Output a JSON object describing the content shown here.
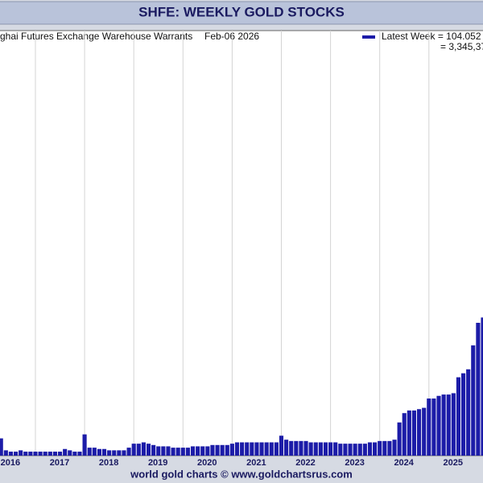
{
  "chart_data": {
    "type": "bar",
    "title": "SHFE: WEEKLY GOLD STOCKS",
    "subtitle": "ghai Futures Exchange Warehouse Warrants",
    "date": "Feb-06  2026",
    "legend": [
      "Latest Week = 104.052",
      "= 3,345,37"
    ],
    "footer": "world gold charts © www.goldchartsrus.com",
    "color": "#1c1ca8",
    "x": [
      2016.3,
      2016.4,
      2016.5,
      2016.6,
      2016.7,
      2016.8,
      2016.9,
      2017.0,
      2017.1,
      2017.2,
      2017.3,
      2017.4,
      2017.5,
      2017.6,
      2017.7,
      2017.8,
      2017.9,
      2018.0,
      2018.1,
      2018.2,
      2018.3,
      2018.4,
      2018.5,
      2018.6,
      2018.7,
      2018.8,
      2018.9,
      2019.0,
      2019.1,
      2019.2,
      2019.3,
      2019.4,
      2019.5,
      2019.6,
      2019.7,
      2019.8,
      2019.9,
      2020.0,
      2020.1,
      2020.2,
      2020.3,
      2020.4,
      2020.5,
      2020.6,
      2020.7,
      2020.8,
      2020.9,
      2021.0,
      2021.1,
      2021.2,
      2021.3,
      2021.4,
      2021.5,
      2021.6,
      2021.7,
      2021.8,
      2021.9,
      2022.0,
      2022.1,
      2022.2,
      2022.3,
      2022.4,
      2022.5,
      2022.6,
      2022.7,
      2022.8,
      2022.9,
      2023.0,
      2023.1,
      2023.2,
      2023.3,
      2023.4,
      2023.5,
      2023.6,
      2023.7,
      2023.8,
      2023.9,
      2024.0,
      2024.1,
      2024.2,
      2024.3,
      2024.4,
      2024.5,
      2024.6,
      2024.7,
      2024.8,
      2024.9,
      2025.0,
      2025.1,
      2025.2,
      2025.3,
      2025.4,
      2025.5,
      2025.6,
      2025.7,
      2025.8,
      2025.9,
      2026.0,
      2026.1
    ],
    "values": [
      13,
      4,
      3,
      3,
      4,
      3,
      3,
      3,
      3,
      3,
      3,
      3,
      3,
      5,
      4,
      3,
      3,
      16,
      6,
      6,
      5,
      5,
      4,
      4,
      4,
      4,
      6,
      9,
      9,
      10,
      9,
      8,
      7,
      7,
      7,
      6,
      6,
      6,
      6,
      7,
      7,
      7,
      7,
      8,
      8,
      8,
      8,
      9,
      10,
      10,
      10,
      10,
      10,
      10,
      10,
      10,
      10,
      15,
      12,
      11,
      11,
      11,
      11,
      10,
      10,
      10,
      10,
      10,
      10,
      9,
      9,
      9,
      9,
      9,
      9,
      10,
      10,
      11,
      11,
      11,
      12,
      25,
      32,
      34,
      34,
      35,
      36,
      43,
      43,
      45,
      46,
      46,
      47,
      59,
      62,
      65,
      83,
      100,
      104
    ],
    "xlim": [
      2016.28,
      2026.1
    ],
    "xticks": [
      2016,
      2017,
      2018,
      2019,
      2020,
      2021,
      2022,
      2023,
      2024,
      2025
    ],
    "ylim": [
      0,
      320
    ],
    "grid": true
  }
}
